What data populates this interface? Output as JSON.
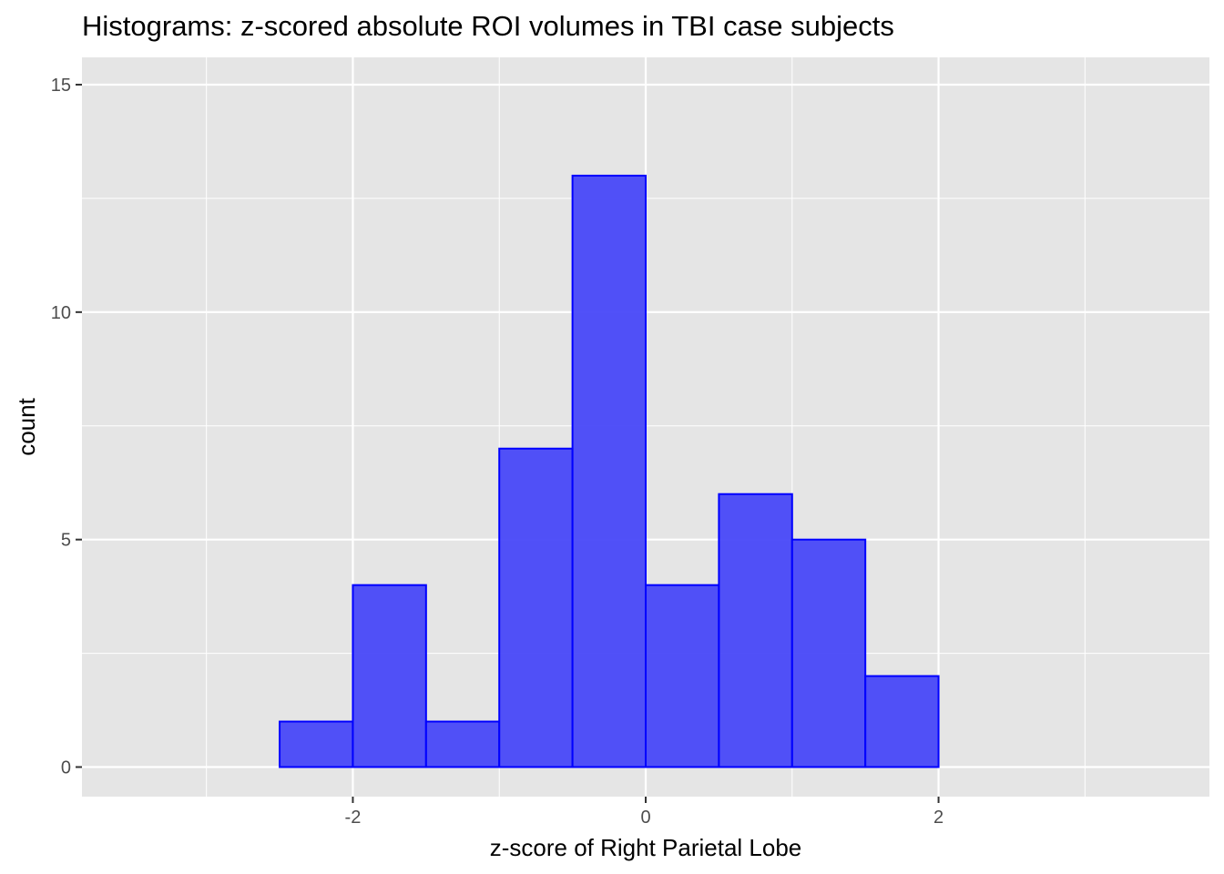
{
  "chart_data": {
    "type": "bar",
    "title": "Histograms: z-scored absolute ROI volumes in TBI case subjects",
    "xlabel": "z-score of Right Parietal Lobe",
    "ylabel": "count",
    "bin_width": 0.5,
    "bins": [
      {
        "x0": -3.5,
        "x1": -3.0,
        "count": 0
      },
      {
        "x0": -3.0,
        "x1": -2.5,
        "count": 0
      },
      {
        "x0": -2.5,
        "x1": -2.0,
        "count": 1
      },
      {
        "x0": -2.0,
        "x1": -1.5,
        "count": 4
      },
      {
        "x0": -1.5,
        "x1": -1.0,
        "count": 1
      },
      {
        "x0": -1.0,
        "x1": -0.5,
        "count": 7
      },
      {
        "x0": -0.5,
        "x1": 0.0,
        "count": 13
      },
      {
        "x0": 0.0,
        "x1": 0.5,
        "count": 4
      },
      {
        "x0": 0.5,
        "x1": 1.0,
        "count": 6
      },
      {
        "x0": 1.0,
        "x1": 1.5,
        "count": 5
      },
      {
        "x0": 1.5,
        "x1": 2.0,
        "count": 2
      },
      {
        "x0": 2.0,
        "x1": 2.5,
        "count": 0
      },
      {
        "x0": 2.5,
        "x1": 3.0,
        "count": 0
      },
      {
        "x0": 3.0,
        "x1": 3.5,
        "count": 0
      }
    ],
    "xlim": [
      -3.85,
      3.85
    ],
    "ylim": [
      -0.65,
      15.6
    ],
    "x_major_ticks": [
      -2,
      0,
      2
    ],
    "x_minor_gridlines": [
      -3,
      -1,
      1,
      3
    ],
    "y_major_ticks": [
      0,
      5,
      10,
      15
    ],
    "y_minor_gridlines": [
      2.5,
      7.5,
      12.5
    ],
    "grid": true,
    "colors": {
      "panel_background": "#e5e5e5",
      "grid": "#ffffff",
      "bar_fill": "#4848f8",
      "bar_outline": "#0000ff"
    }
  }
}
